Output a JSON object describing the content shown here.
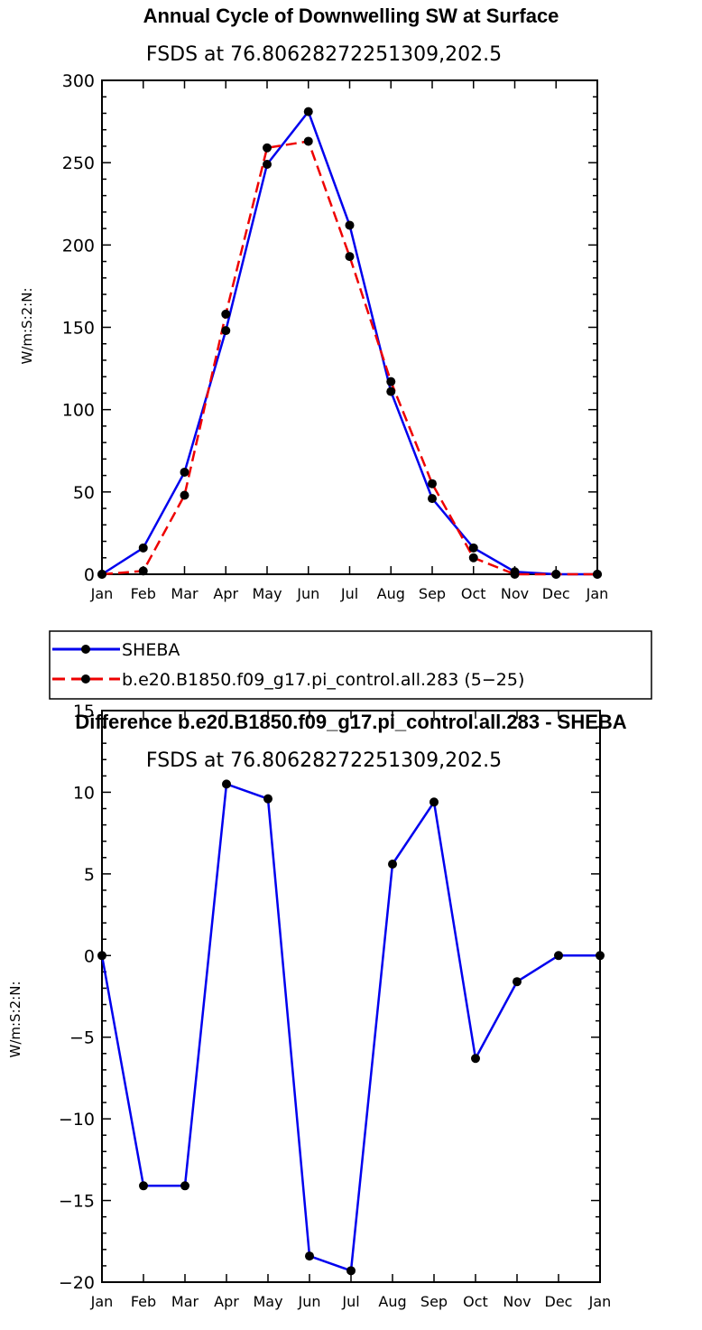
{
  "chart_data": [
    {
      "type": "line",
      "title": "Annual Cycle of Downwelling SW at Surface",
      "subtitle": "FSDS at 76.80628272251309,202.5",
      "xlabel": "",
      "ylabel": "W/m:S:2:N:",
      "categories": [
        "Jan",
        "Feb",
        "Mar",
        "Apr",
        "May",
        "Jun",
        "Jul",
        "Aug",
        "Sep",
        "Oct",
        "Nov",
        "Dec",
        "Jan"
      ],
      "ylim": [
        0,
        300
      ],
      "yticks": [
        0,
        50,
        100,
        150,
        200,
        250,
        300
      ],
      "series": [
        {
          "name": "SHEBA",
          "color": "#0000ee",
          "dash": "solid",
          "values": [
            0,
            16,
            62,
            148,
            249,
            281,
            212,
            111,
            46,
            16,
            1.5,
            0,
            0
          ]
        },
        {
          "name": "b.e20.B1850.f09_g17.pi_control.all.283 (5−25)",
          "color": "#ee0000",
          "dash": "dashed",
          "values": [
            0,
            2,
            48,
            158,
            259,
            263,
            193,
            117,
            55,
            10,
            0,
            0,
            0
          ]
        }
      ]
    },
    {
      "type": "line",
      "title": "Difference b.e20.B1850.f09_g17.pi_control.all.283 - SHEBA",
      "subtitle": "FSDS at 76.80628272251309,202.5",
      "xlabel": "",
      "ylabel": "W/m:S:2:N:",
      "categories": [
        "Jan",
        "Feb",
        "Mar",
        "Apr",
        "May",
        "Jun",
        "Jul",
        "Aug",
        "Sep",
        "Oct",
        "Nov",
        "Dec",
        "Jan"
      ],
      "ylim": [
        -20,
        15
      ],
      "yticks": [
        -20,
        -15,
        -10,
        -5,
        0,
        5,
        10,
        15
      ],
      "ytick_labels": [
        "−20",
        "−15",
        "−10",
        "−5",
        "0",
        "5",
        "10",
        "15"
      ],
      "series": [
        {
          "name": "Difference",
          "color": "#0000ee",
          "dash": "solid",
          "values": [
            0,
            -14.1,
            -14.1,
            10.5,
            9.6,
            -18.4,
            -19.3,
            5.6,
            9.4,
            -6.3,
            -1.6,
            0,
            0
          ]
        }
      ]
    }
  ]
}
